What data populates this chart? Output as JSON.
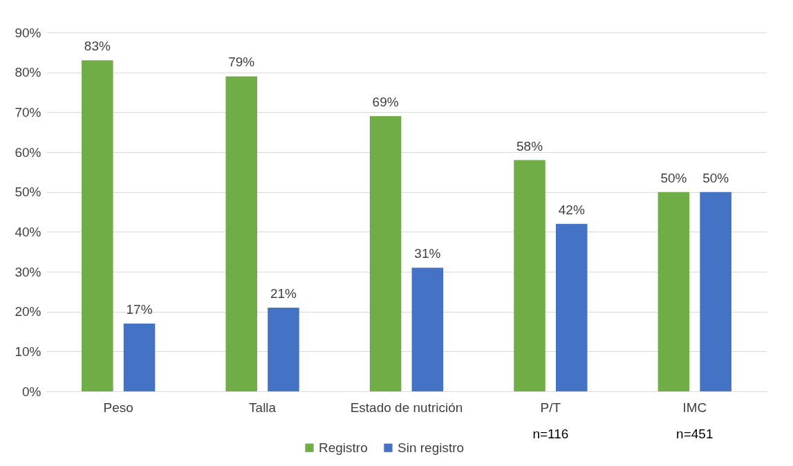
{
  "chart_data": {
    "type": "bar",
    "categories": [
      "Peso",
      "Talla",
      "Estado de nutrición",
      "P/T",
      "IMC"
    ],
    "series": [
      {
        "name": "Registro",
        "color": "#70ad47",
        "values": [
          83,
          79,
          69,
          58,
          50
        ],
        "value_labels": [
          "83%",
          "79%",
          "69%",
          "58%",
          "50%"
        ]
      },
      {
        "name": "Sin registro",
        "color": "#4472c4",
        "values": [
          17,
          21,
          31,
          42,
          50
        ],
        "value_labels": [
          "17%",
          "21%",
          "31%",
          "42%",
          "50%"
        ]
      }
    ],
    "ylim": [
      0,
      90
    ],
    "yticks": [
      {
        "value": 0,
        "label": "0%"
      },
      {
        "value": 10,
        "label": "10%"
      },
      {
        "value": 20,
        "label": "20%"
      },
      {
        "value": 30,
        "label": "30%"
      },
      {
        "value": 40,
        "label": "40%"
      },
      {
        "value": 50,
        "label": "50%"
      },
      {
        "value": 60,
        "label": "60%"
      },
      {
        "value": 70,
        "label": "70%"
      },
      {
        "value": 80,
        "label": "80%"
      },
      {
        "value": 90,
        "label": "90%"
      }
    ],
    "grid": "y",
    "legend": "bottom",
    "annotations": [
      "n=116",
      "n=451"
    ]
  }
}
